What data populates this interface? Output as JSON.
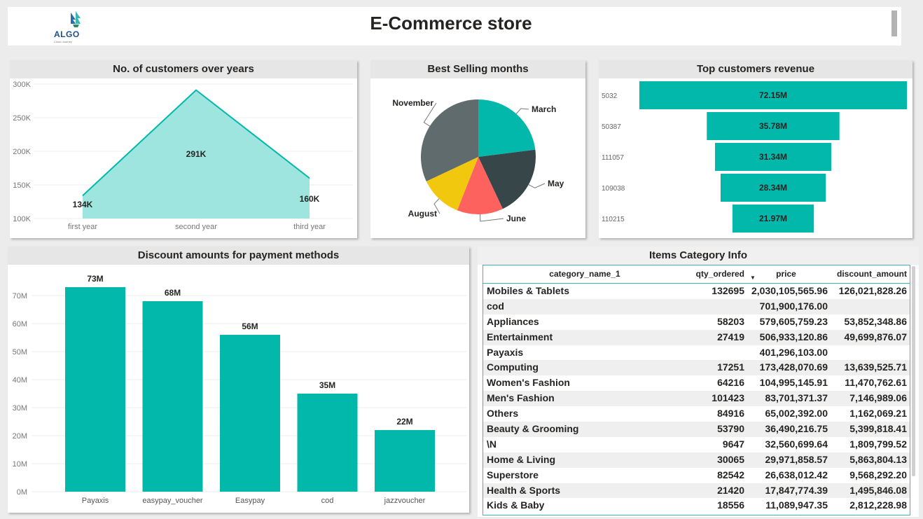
{
  "header": {
    "title": "E-Commerce store",
    "logo_text": "ALGO",
    "logo_tagline": "Cloud Journey"
  },
  "colors": {
    "teal": "#01b8aa",
    "teal_light": "#9fe5df",
    "dark_gray": "#5f6b6d",
    "charcoal": "#374649",
    "red": "#fd625e",
    "yellow": "#f2c80f"
  },
  "customers_panel": {
    "title": "No. of customers over years"
  },
  "months_panel": {
    "title": "Best Selling months"
  },
  "top_panel": {
    "title": "Top customers revenue"
  },
  "discount_panel": {
    "title": "Discount amounts for payment methods"
  },
  "table_panel": {
    "title": "Items Category Info"
  },
  "chart_data": [
    {
      "type": "area",
      "title": "No. of customers over years",
      "categories": [
        "first year",
        "second year",
        "third year"
      ],
      "values": [
        134000,
        291000,
        160000
      ],
      "data_labels": [
        "134K",
        "291K",
        "160K"
      ],
      "y_ticks": [
        "100K",
        "150K",
        "200K",
        "250K",
        "300K"
      ],
      "ylim": [
        100000,
        300000
      ],
      "grid": true
    },
    {
      "type": "pie",
      "title": "Best Selling months",
      "slices": [
        {
          "label": "March",
          "value": 23,
          "color": "#01b8aa"
        },
        {
          "label": "May",
          "value": 20,
          "color": "#374649"
        },
        {
          "label": "June",
          "value": 13,
          "color": "#fd625e"
        },
        {
          "label": "August",
          "value": 12,
          "color": "#f2c80f"
        },
        {
          "label": "November",
          "value": 32,
          "color": "#5f6b6d"
        }
      ]
    },
    {
      "type": "bar",
      "orientation": "funnel",
      "title": "Top customers revenue",
      "categories": [
        "5032",
        "50387",
        "111057",
        "109038",
        "110215"
      ],
      "values": [
        72.15,
        35.78,
        31.34,
        28.34,
        21.97
      ],
      "data_labels": [
        "72.15M",
        "35.78M",
        "31.34M",
        "28.34M",
        "21.97M"
      ]
    },
    {
      "type": "bar",
      "title": "Discount amounts for payment methods",
      "categories": [
        "Payaxis",
        "easypay_voucher",
        "Easypay",
        "cod",
        "jazzvoucher"
      ],
      "values": [
        73,
        68,
        56,
        35,
        22
      ],
      "data_labels": [
        "73M",
        "68M",
        "56M",
        "35M",
        "22M"
      ],
      "y_ticks": [
        "0M",
        "10M",
        "20M",
        "30M",
        "40M",
        "50M",
        "60M",
        "70M"
      ],
      "ylim": [
        0,
        76
      ],
      "grid": true
    },
    {
      "type": "table",
      "title": "Items Category Info",
      "columns": [
        "category_name_1",
        "qty_ordered",
        "price",
        "discount_amount"
      ],
      "rows": [
        [
          "Mobiles & Tablets",
          "132695",
          "2,030,105,565.96",
          "126,021,828.26"
        ],
        [
          "cod",
          "",
          "701,900,176.00",
          ""
        ],
        [
          "Appliances",
          "58203",
          "579,605,759.23",
          "53,852,348.86"
        ],
        [
          "Entertainment",
          "27419",
          "506,933,120.86",
          "49,699,876.07"
        ],
        [
          "Payaxis",
          "",
          "401,296,103.00",
          ""
        ],
        [
          "Computing",
          "17251",
          "173,428,070.69",
          "13,639,525.71"
        ],
        [
          "Women's Fashion",
          "64216",
          "104,995,145.91",
          "11,470,762.61"
        ],
        [
          "Men's Fashion",
          "101423",
          "83,701,371.37",
          "7,146,989.06"
        ],
        [
          "Others",
          "84916",
          "65,002,392.00",
          "1,162,069.21"
        ],
        [
          "Beauty & Grooming",
          "53790",
          "36,490,216.75",
          "5,399,818.41"
        ],
        [
          "\\N",
          "9647",
          "32,560,699.64",
          "1,809,799.52"
        ],
        [
          "Home & Living",
          "30065",
          "29,971,858.57",
          "5,863,804.13"
        ],
        [
          "Superstore",
          "82542",
          "26,638,012.42",
          "9,568,292.20"
        ],
        [
          "Health & Sports",
          "21420",
          "17,847,774.39",
          "1,495,846.08"
        ],
        [
          "Kids & Baby",
          "18556",
          "11,089,947.35",
          "2,812,228.98"
        ]
      ]
    }
  ]
}
